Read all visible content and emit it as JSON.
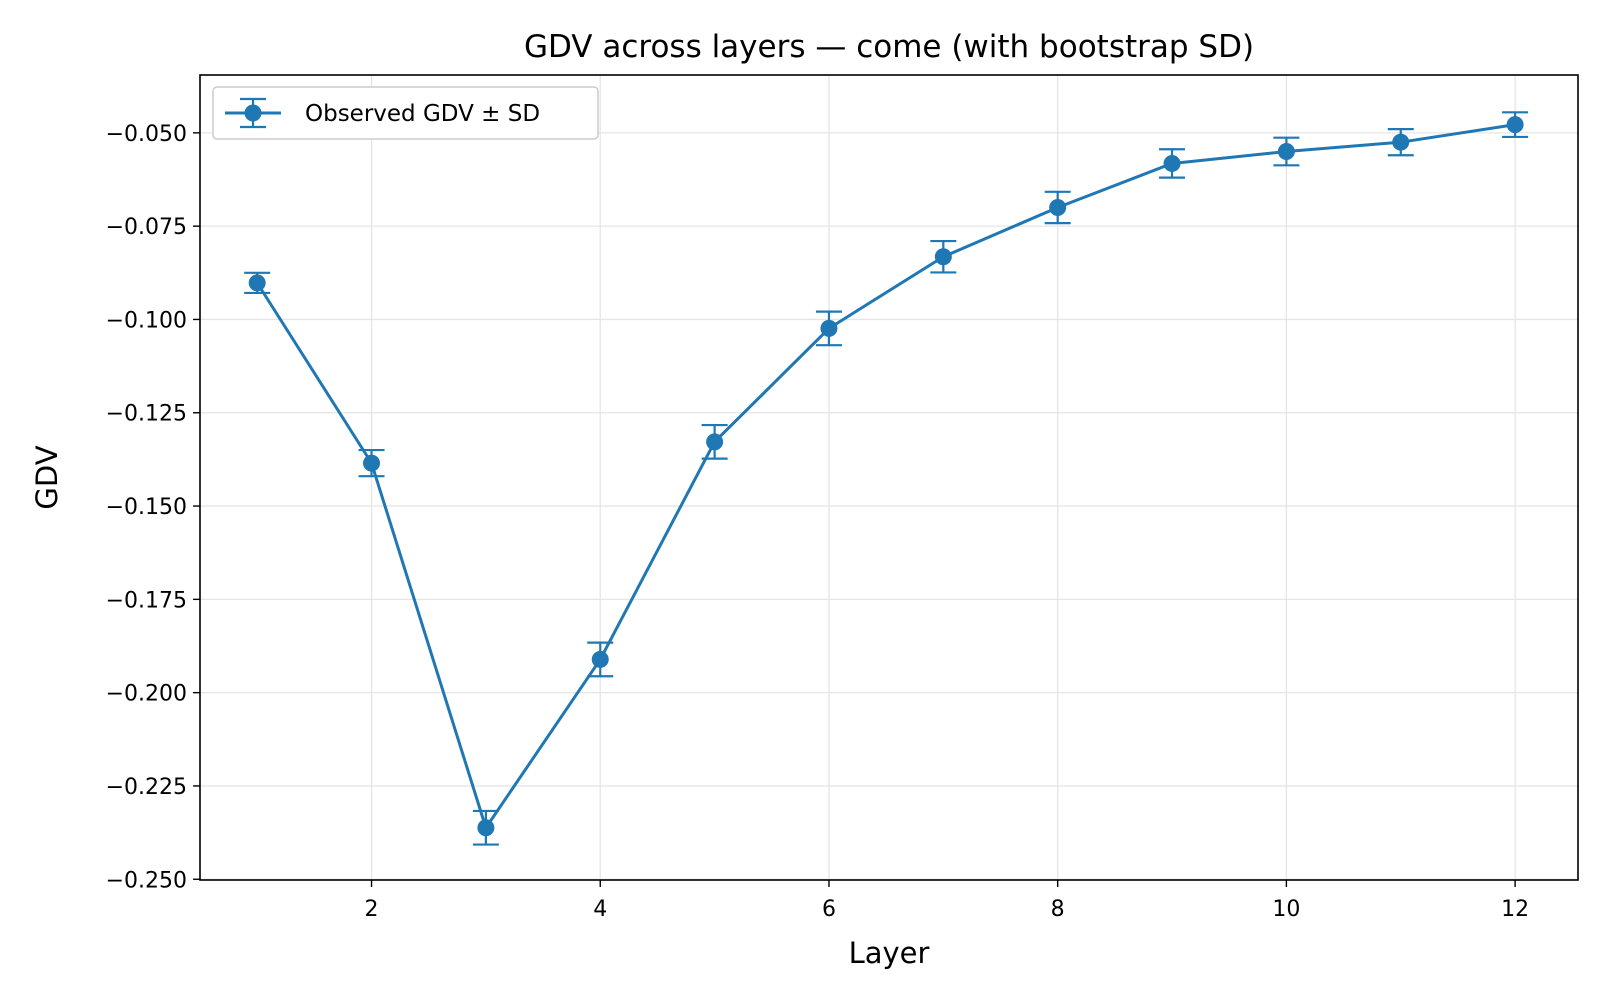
{
  "chart_data": {
    "type": "line",
    "title": "GDV across layers — come (with bootstrap SD)",
    "xlabel": "Layer",
    "ylabel": "GDV",
    "xlim": [
      0.5,
      12.55
    ],
    "ylim": [
      -0.2502,
      -0.0345
    ],
    "xticks": [
      2,
      4,
      6,
      8,
      10,
      12
    ],
    "yticks": [
      -0.25,
      -0.225,
      -0.2,
      -0.175,
      -0.15,
      -0.125,
      -0.1,
      -0.075,
      -0.05
    ],
    "ytick_labels": [
      "−0.250",
      "−0.225",
      "−0.200",
      "−0.175",
      "−0.150",
      "−0.125",
      "−0.100",
      "−0.075",
      "−0.050"
    ],
    "grid": true,
    "legend_position": "top-left",
    "color": "#1f77b4",
    "series": [
      {
        "name": "Observed GDV ± SD",
        "x": [
          1,
          2,
          3,
          4,
          5,
          6,
          7,
          8,
          9,
          10,
          11,
          12
        ],
        "y": [
          -0.0902,
          -0.1385,
          -0.2362,
          -0.1911,
          -0.1328,
          -0.1024,
          -0.0832,
          -0.07,
          -0.0582,
          -0.055,
          -0.0525,
          -0.0478
        ],
        "sd": [
          0.0027,
          0.0035,
          0.0045,
          0.0045,
          0.0045,
          0.0045,
          0.0042,
          0.0042,
          0.0038,
          0.0037,
          0.0035,
          0.0033
        ]
      }
    ]
  }
}
